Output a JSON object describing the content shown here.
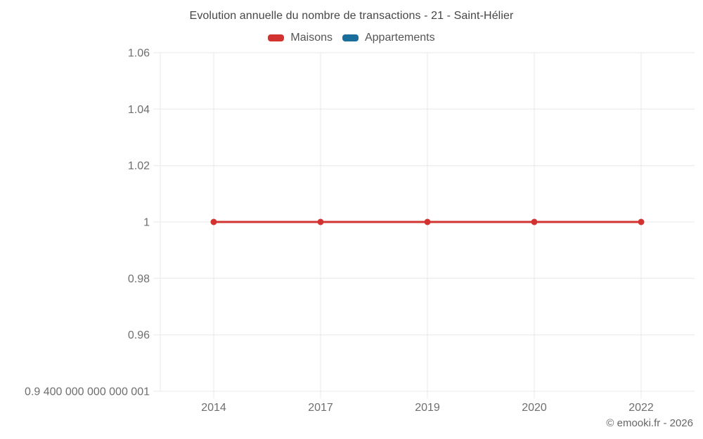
{
  "header": {
    "title": "Evolution annuelle du nombre de transactions - 21 - Saint-Hélier"
  },
  "legend": {
    "items": [
      {
        "label": "Maisons",
        "color": "#d33330"
      },
      {
        "label": "Appartements",
        "color": "#1a6e9c"
      }
    ]
  },
  "footer": {
    "credit": "© emooki.fr - 2026"
  },
  "chart_data": {
    "type": "line",
    "title": "Evolution annuelle du nombre de transactions - 21 - Saint-Hélier",
    "xlabel": "",
    "ylabel": "",
    "categories": [
      "2014",
      "2017",
      "2019",
      "2020",
      "2022"
    ],
    "series": [
      {
        "name": "Maisons",
        "color": "#d33330",
        "values": [
          1,
          1,
          1,
          1,
          1
        ]
      },
      {
        "name": "Appartements",
        "color": "#1a6e9c",
        "values": []
      }
    ],
    "ylim": [
      0.9400000000000001,
      1.06
    ],
    "yticks": [
      {
        "value": 1.06,
        "label": "1.06"
      },
      {
        "value": 1.04,
        "label": "1.04"
      },
      {
        "value": 1.02,
        "label": "1.02"
      },
      {
        "value": 1.0,
        "label": "1"
      },
      {
        "value": 0.98,
        "label": "0.98"
      },
      {
        "value": 0.96,
        "label": "0.96"
      },
      {
        "value": 0.9400000000000001,
        "label": "0.9 400 000 000 000 001"
      }
    ],
    "grid": true,
    "legend_position": "top",
    "gridline_color": "#e8e8e8",
    "tick_color": "#6e6e6e",
    "line_width": 3,
    "point_radius": 4.5
  }
}
